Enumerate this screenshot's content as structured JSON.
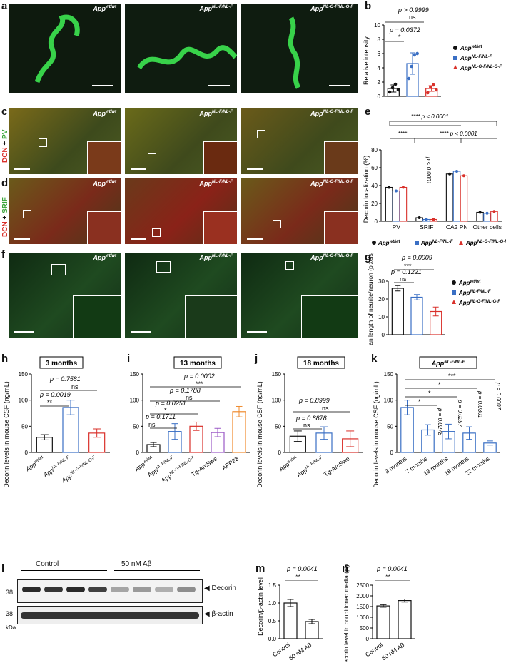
{
  "panels": {
    "a": {
      "letter": "a",
      "images": [
        "App<sup>wt/wt</sup>",
        "App<sup>NL-F/NL-F</sup>",
        "App<sup>NL-G-F/NL-G-F</sup>"
      ]
    },
    "b": {
      "letter": "b",
      "ylabel": "Relative intensity",
      "yticks": [
        "0",
        "2",
        "4",
        "6",
        "8",
        "10"
      ],
      "sig": [
        {
          "p": "p = 0.0372",
          "mark": "*"
        },
        {
          "p": "p > 0.9999",
          "mark": "ns"
        }
      ],
      "legend": [
        "App<sup>wt/wt</sup>",
        "App<sup>NL-F/NL-F</sup>",
        "App<sup>NL-G-F/NL-G-F</sup>"
      ]
    },
    "c": {
      "letter": "c",
      "stain_red": "DCN",
      "stain_plus": " + ",
      "stain_green": "PV"
    },
    "d": {
      "letter": "d",
      "stain_red": "DCN",
      "stain_plus": " + ",
      "stain_green": "SRIF"
    },
    "e": {
      "letter": "e",
      "ylabel": "Decorin localization (%)",
      "yticks": [
        "0",
        "20",
        "40",
        "60",
        "80"
      ],
      "categories": [
        "PV",
        "SRIF",
        "CA2 PN",
        "Other cells"
      ],
      "sig": [
        "**** p < 0.0001",
        "****",
        "**** p < 0.0001",
        "p < 0.0001"
      ]
    },
    "f": {
      "letter": "f"
    },
    "g": {
      "letter": "g",
      "ylabel": "Mean length of neurite/neuron (pixels)",
      "yticks": [
        "0",
        "10",
        "20",
        "30"
      ],
      "sig": [
        {
          "p": "p = 0.0009",
          "mark": "***"
        },
        {
          "p": "p = 0.1221",
          "mark": "ns"
        }
      ]
    },
    "h": {
      "letter": "h",
      "title": "3 months",
      "ylabel": "Decorin levels in mouse CSF (ng/mL)",
      "yticks": [
        "0",
        "50",
        "100",
        "150"
      ],
      "xlabels": [
        "App<sup>wt/wt</sup>",
        "App<sup>NL-F/NL-F</sup>",
        "App<sup>NL-G-F/NL-G-F</sup>"
      ],
      "sig": [
        {
          "p": "p = 0.7581",
          "mark": "ns"
        },
        {
          "p": "p = 0.0019",
          "mark": "**"
        }
      ]
    },
    "i": {
      "letter": "i",
      "title": "13 months",
      "yticks": [
        "0",
        "50",
        "100",
        "150"
      ],
      "xlabels": [
        "App<sup>wt/wt</sup>",
        "App<sup>NL-F/NL-F</sup>",
        "App<sup>NL-G-F/NL-G-F</sup>",
        "Tg-ArcSwe",
        "APP23"
      ],
      "sig": [
        {
          "p": "p = 0.0002",
          "mark": "***"
        },
        {
          "p": "p = 0.1788",
          "mark": "ns"
        },
        {
          "p": "p = 0.0251",
          "mark": "*"
        },
        {
          "p": "p = 0.1711",
          "mark": "ns"
        }
      ]
    },
    "j": {
      "letter": "j",
      "title": "18 months",
      "ylabel": "Decorin levels in mouse CSF (ng/mL)",
      "yticks": [
        "0",
        "50",
        "100",
        "150"
      ],
      "xlabels": [
        "App<sup>wt/wt</sup>",
        "App<sup>NL-F/NL-F</sup>",
        "Tg-ArcSwe"
      ],
      "sig": [
        {
          "p": "p = 0.8999",
          "mark": "ns"
        },
        {
          "p": "p = 0.8878",
          "mark": "ns"
        }
      ]
    },
    "k": {
      "letter": "k",
      "title": "App<sup>NL-F/NL-F</sup>",
      "ylabel": "Decorin levels in mouse CSF (ng/mL)",
      "yticks": [
        "0",
        "50",
        "100",
        "150"
      ],
      "xlabels": [
        "3 months",
        "7 months",
        "13 months",
        "18 months",
        "22 months"
      ],
      "sig": [
        "***",
        "*",
        "*",
        "*",
        "p = 0.0278",
        "p = 0.0257",
        "p = 0.0301",
        "p = 0.0007"
      ]
    },
    "l": {
      "letter": "l",
      "groups": [
        "Control",
        "50 nM Aβ"
      ],
      "bands": [
        "Decorin",
        "β-actin"
      ],
      "mw": [
        "38",
        "38"
      ],
      "unit": "kDa"
    },
    "m": {
      "letter": "m",
      "ylabel": "Decorin/β-actin level",
      "yticks": [
        "0.0",
        "0.5",
        "1.0",
        "1.5"
      ],
      "xlabels": [
        "Control",
        "50 nM Aβ"
      ],
      "sig": {
        "p": "p = 0.0041",
        "mark": "**"
      }
    },
    "n": {
      "letter": "n",
      "ylabel": "Decorin level in conditioned media (pg/mL)",
      "yticks": [
        "0",
        "500",
        "1000",
        "1500",
        "2000",
        "2500"
      ],
      "xlabels": [
        "Control",
        "50 nM Aβ"
      ],
      "sig": {
        "p": "p = 0.0041",
        "mark": "**"
      }
    }
  },
  "chart_data": [
    {
      "id": "b",
      "type": "bar",
      "categories": [
        "App wt/wt",
        "App NL-F/NL-F",
        "App NL-G-F/NL-G-F"
      ],
      "values": [
        1.1,
        4.6,
        1.1
      ],
      "errors": [
        0.5,
        1.5,
        0.4
      ],
      "ylim": [
        0,
        10
      ],
      "colors": [
        "#111111",
        "#3a6fc4",
        "#d9302a"
      ],
      "points": [
        [
          0.6,
          1.2,
          1.7,
          0.9
        ],
        [
          2.5,
          4.2,
          5.8,
          6.0
        ],
        [
          0.5,
          1.3,
          1.6,
          0.9
        ]
      ]
    },
    {
      "id": "e",
      "type": "bar",
      "categories": [
        "PV",
        "SRIF",
        "CA2 PN",
        "Other cells"
      ],
      "series": [
        {
          "name": "App wt/wt",
          "values": [
            38,
            4,
            53,
            10
          ]
        },
        {
          "name": "App NL-F/NL-F",
          "values": [
            34,
            2,
            56,
            9
          ]
        },
        {
          "name": "App NL-G-F/NL-G-F",
          "values": [
            38,
            2,
            51,
            11
          ]
        }
      ],
      "ylim": [
        0,
        80
      ]
    },
    {
      "id": "g",
      "type": "bar",
      "categories": [
        "App wt/wt",
        "App NL-F/NL-F",
        "App NL-G-F/NL-G-F"
      ],
      "values": [
        26,
        21,
        13
      ],
      "errors": [
        1.5,
        1.5,
        2.5
      ],
      "ylim": [
        0,
        30
      ]
    },
    {
      "id": "h",
      "type": "bar",
      "categories": [
        "App wt/wt",
        "App NL-F/NL-F",
        "App NL-G-F/NL-G-F"
      ],
      "values": [
        29,
        86,
        37
      ],
      "errors": [
        5,
        14,
        8
      ],
      "ylim": [
        0,
        150
      ]
    },
    {
      "id": "i",
      "type": "bar",
      "categories": [
        "App wt/wt",
        "App NL-F/NL-F",
        "App NL-G-F/NL-G-F",
        "Tg-ArcSwe",
        "APP23"
      ],
      "values": [
        15,
        40,
        50,
        38,
        78
      ],
      "errors": [
        4,
        15,
        8,
        8,
        10
      ],
      "ylim": [
        0,
        150
      ]
    },
    {
      "id": "j",
      "type": "bar",
      "categories": [
        "App wt/wt",
        "App NL-F/NL-F",
        "Tg-ArcSwe"
      ],
      "values": [
        31,
        37,
        26
      ],
      "errors": [
        10,
        12,
        15
      ],
      "ylim": [
        0,
        150
      ]
    },
    {
      "id": "k",
      "type": "bar",
      "categories": [
        "3 months",
        "7 months",
        "13 months",
        "18 months",
        "22 months"
      ],
      "values": [
        86,
        43,
        40,
        37,
        18
      ],
      "errors": [
        14,
        10,
        14,
        12,
        4
      ],
      "ylim": [
        0,
        150
      ]
    },
    {
      "id": "m",
      "type": "bar",
      "categories": [
        "Control",
        "50 nM Aβ"
      ],
      "values": [
        1.0,
        0.48
      ],
      "errors": [
        0.1,
        0.06
      ],
      "ylim": [
        0,
        1.5
      ]
    },
    {
      "id": "n",
      "type": "bar",
      "categories": [
        "Control",
        "50 nM Aβ"
      ],
      "values": [
        1530,
        1780
      ],
      "errors": [
        60,
        70
      ],
      "ylim": [
        0,
        2500
      ]
    }
  ]
}
